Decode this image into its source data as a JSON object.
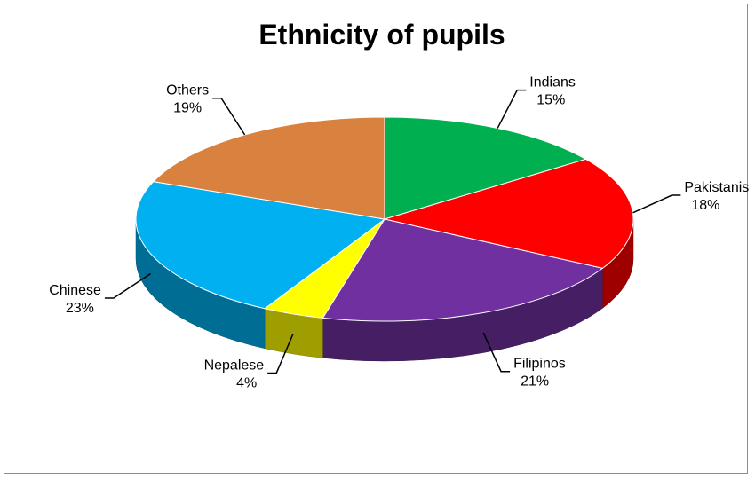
{
  "chart_data": {
    "type": "pie",
    "title": "Ethnicity of pupils",
    "three_d": true,
    "slices": [
      {
        "label": "Indians",
        "percent_label": "15%",
        "value": 15,
        "color": "#00b050"
      },
      {
        "label": "Pakistanis",
        "percent_label": "18%",
        "value": 18,
        "color": "#ff0000"
      },
      {
        "label": "Filipinos",
        "percent_label": "21%",
        "value": 21,
        "color": "#7030a0"
      },
      {
        "label": "Nepalese",
        "percent_label": "4%",
        "value": 4,
        "color": "#ffff00"
      },
      {
        "label": "Chinese",
        "percent_label": "23%",
        "value": 23,
        "color": "#00b0f0"
      },
      {
        "label": "Others",
        "percent_label": "19%",
        "value": 19,
        "color": "#d9823f"
      }
    ]
  }
}
